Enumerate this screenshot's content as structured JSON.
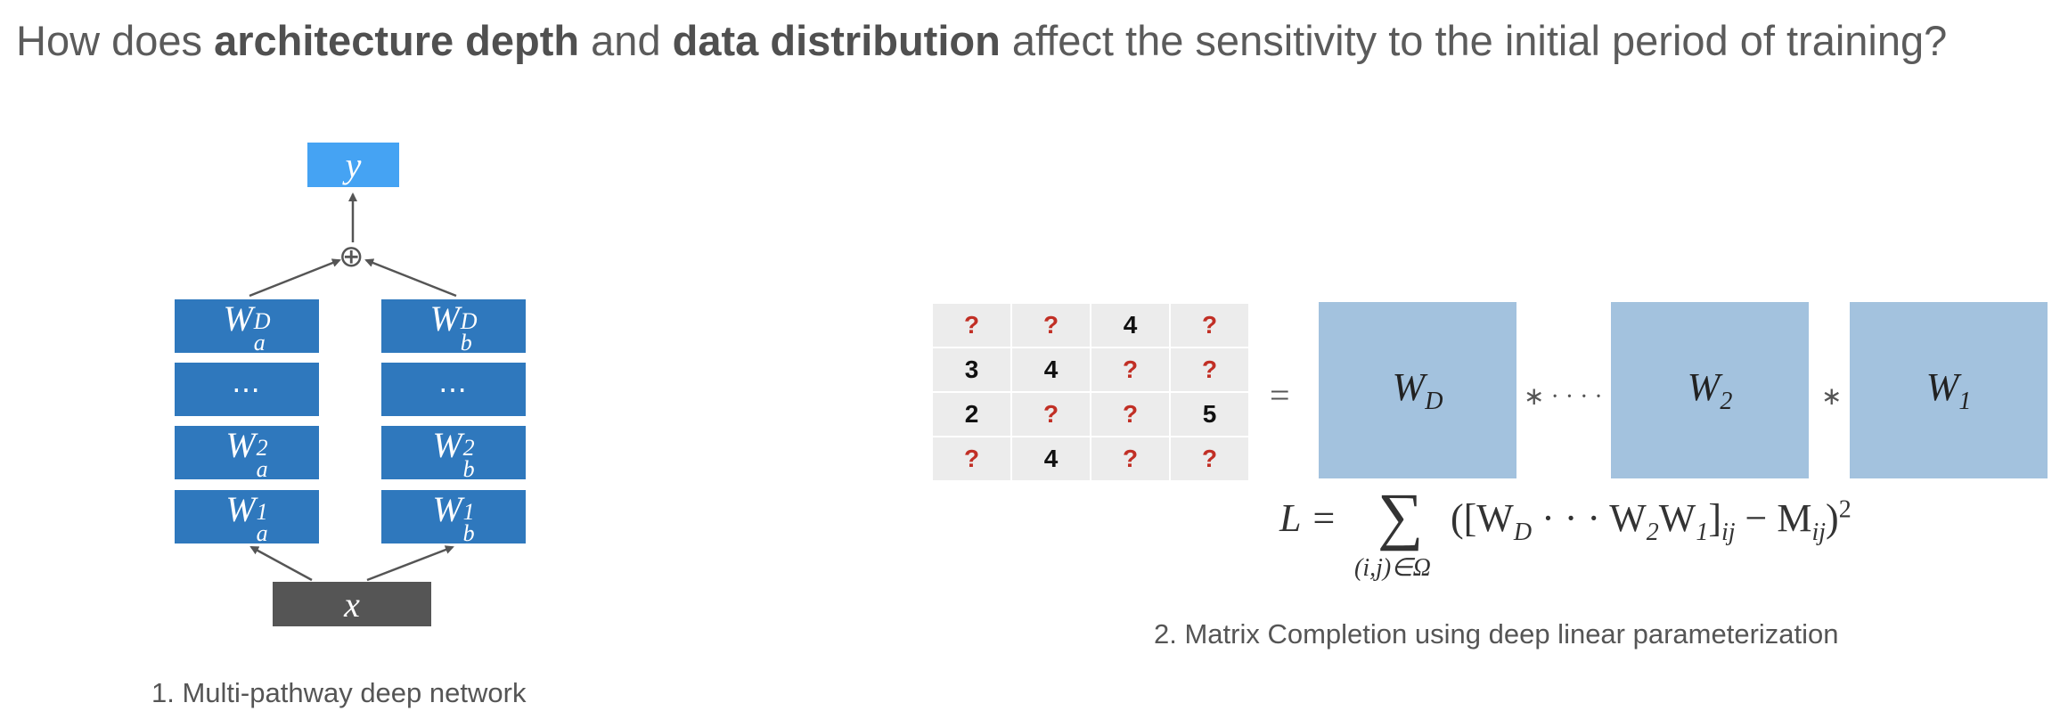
{
  "title": {
    "part1": "How does ",
    "bold1": "architecture depth",
    "part2": " and ",
    "bold2": "data distribution",
    "part3": " affect the sensitivity to the initial period of training?"
  },
  "network": {
    "output_label": "y",
    "input_label": "x",
    "combine_symbol": "⊕",
    "dots_label": "⋯",
    "path_a": {
      "base": "W",
      "sub": "a",
      "layers": [
        "D",
        "2",
        "1"
      ]
    },
    "path_b": {
      "base": "W",
      "sub": "b",
      "layers": [
        "D",
        "2",
        "1"
      ]
    },
    "caption": "1. Multi-pathway deep network"
  },
  "matrix": {
    "rows": [
      [
        "?",
        "?",
        "4",
        "?"
      ],
      [
        "3",
        "4",
        "?",
        "?"
      ],
      [
        "2",
        "?",
        "?",
        "5"
      ],
      [
        "?",
        "4",
        "?",
        "?"
      ]
    ],
    "equals": "=",
    "factors": [
      {
        "base": "W",
        "sub": "D"
      },
      {
        "base": "W",
        "sub": "2"
      },
      {
        "base": "W",
        "sub": "1"
      }
    ],
    "op_dots": "∗ · · · · ∗",
    "op_star": "∗",
    "caption": "2. Matrix Completion using deep linear parameterization"
  },
  "formula": {
    "lhs": "L =",
    "sigma": "∑",
    "sum_sub": "(i,j)∈Ω",
    "body_open": "([W",
    "sub_D": "D",
    "dots": " · · · W",
    "sub_2": "2",
    "w1": "W",
    "sub_1": "1",
    "bracket_close": "]",
    "sub_ij": "ij",
    "minus": " − M",
    "sub_ij2": "ij",
    "close": ")",
    "power": "2"
  },
  "colors": {
    "block": "#2f78bd",
    "output": "#45a3f3",
    "input": "#555555",
    "factor": "#a3c2de",
    "unknown": "#c12f25"
  }
}
